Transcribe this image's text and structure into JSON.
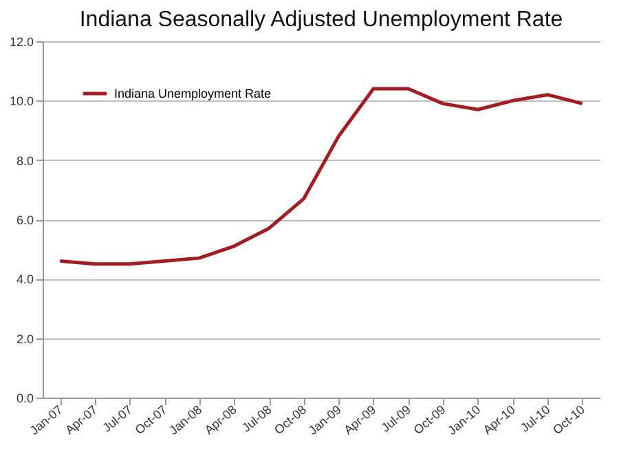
{
  "chart_data": {
    "type": "line",
    "title": "Indiana Seasonally Adjusted Unemployment Rate",
    "categories": [
      "Jan-07",
      "Apr-07",
      "Jul-07",
      "Oct-07",
      "Jan-08",
      "Apr-08",
      "Jul-08",
      "Oct-08",
      "Jan-09",
      "Apr-09",
      "Jul-09",
      "Oct-09",
      "Jan-10",
      "Apr-10",
      "Jul-10",
      "Oct-10"
    ],
    "series": [
      {
        "name": "Indiana Unemployment Rate",
        "color": "#a31d24",
        "values": [
          4.6,
          4.5,
          4.5,
          4.6,
          4.7,
          5.1,
          5.7,
          6.7,
          8.8,
          10.4,
          10.4,
          9.9,
          9.7,
          10.0,
          10.2,
          9.9
        ]
      }
    ],
    "ylim": [
      0,
      12
    ],
    "yticks": [
      {
        "value": 0,
        "label": "0.0"
      },
      {
        "value": 2,
        "label": "2.0"
      },
      {
        "value": 4,
        "label": "4.0"
      },
      {
        "value": 6,
        "label": "6.0"
      },
      {
        "value": 8,
        "label": "8.0"
      },
      {
        "value": 10,
        "label": "10.0"
      },
      {
        "value": 12,
        "label": "12.0"
      }
    ],
    "grid": "y",
    "legend": "top left",
    "marker": "none",
    "line_style": "solid"
  }
}
